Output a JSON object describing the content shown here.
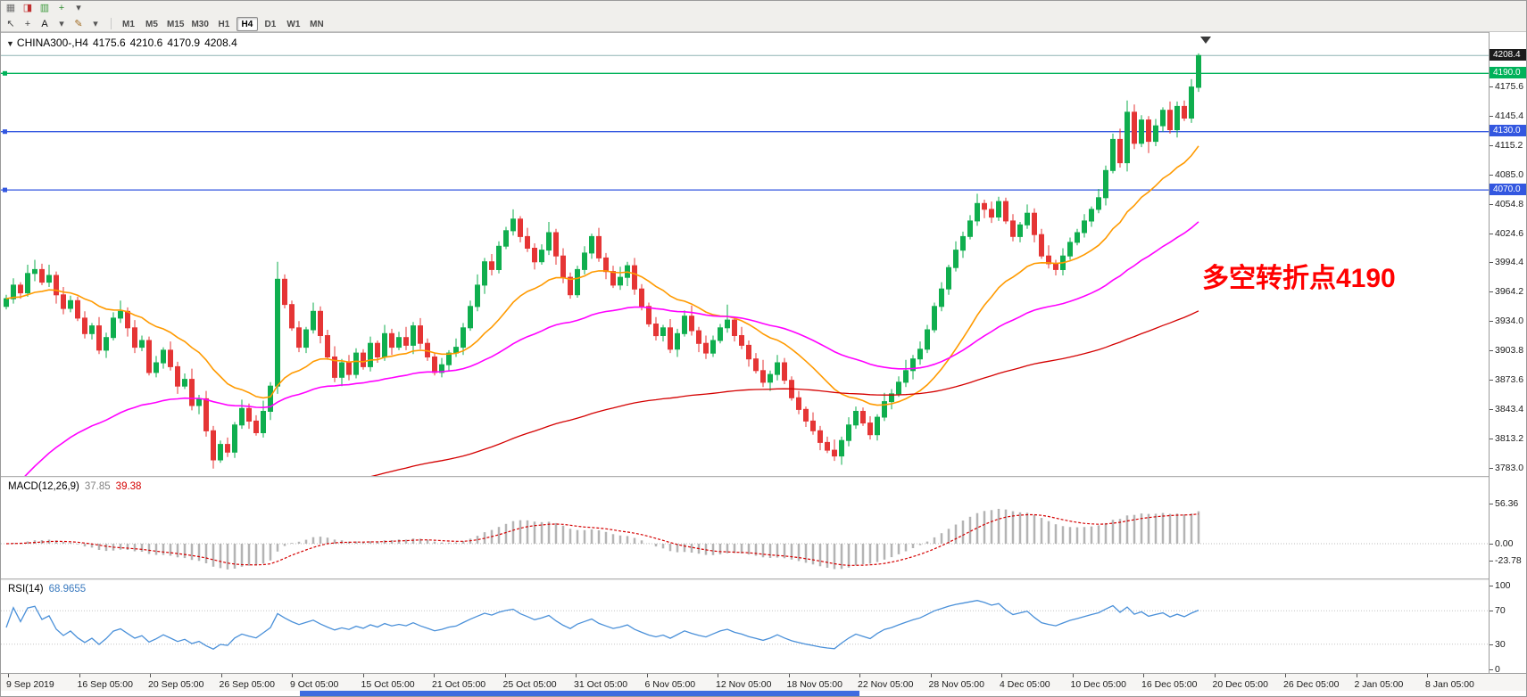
{
  "toolbar": {
    "row1_icons": [
      {
        "name": "ticker-grid-icon",
        "glyph": "▦",
        "color": "#6e6e6e"
      },
      {
        "name": "new-order-icon",
        "glyph": "◨",
        "color": "#c03030"
      },
      {
        "name": "chart-window-icon",
        "glyph": "▥",
        "color": "#3c9a3c"
      },
      {
        "name": "indicators-icon",
        "glyph": "+",
        "color": "#2e8b2e"
      },
      {
        "name": "dropdown-arrow-icon",
        "glyph": "▾",
        "color": "#555555"
      }
    ],
    "row2_icons": [
      {
        "name": "cursor-icon",
        "glyph": "↖",
        "color": "#444444"
      },
      {
        "name": "crosshair-icon",
        "glyph": "+",
        "color": "#444444"
      },
      {
        "name": "text-tool-icon",
        "glyph": "A",
        "color": "#111111"
      },
      {
        "name": "shapes-dropdown-icon",
        "glyph": "▾",
        "color": "#555555"
      },
      {
        "name": "pen-icon",
        "glyph": "✎",
        "color": "#a06a20"
      },
      {
        "name": "pen-dropdown-icon",
        "glyph": "▾",
        "color": "#555555"
      }
    ],
    "timeframes": [
      "M1",
      "M5",
      "M15",
      "M30",
      "H1",
      "H4",
      "D1",
      "W1",
      "MN"
    ],
    "active_timeframe": "H4"
  },
  "chart": {
    "title": "CHINA300-,H4",
    "ohlc": {
      "open": "4175.6",
      "high": "4210.6",
      "low": "4170.9",
      "close": "4208.4"
    },
    "current_price": "4208.4",
    "annotation": {
      "text": "多空转折点4190",
      "color": "#ff0000"
    },
    "hlines": [
      {
        "label": "4190.0",
        "price": 4190,
        "color": "#00b25a"
      },
      {
        "label": "4130.0",
        "price": 4130,
        "color": "#3357e0"
      },
      {
        "label": "4070.0",
        "price": 4070,
        "color": "#3357e0"
      }
    ],
    "colors": {
      "up": "#0fae4e",
      "down": "#e53535",
      "bid_line": "#8fb3b3",
      "current_badge_bg": "#1c1c1c"
    }
  },
  "macd_panel": {
    "label": "MACD(12,26,9)",
    "value_main": "37.85",
    "value_signal": "39.38",
    "histogram_color": "#b4b4b4",
    "signal_color": "#d40000"
  },
  "rsi_panel": {
    "label": "RSI(14)",
    "value": "68.9655",
    "line_color": "#4a90d9"
  },
  "chart_data": {
    "type": "candlestick",
    "symbol": "CHINA300-",
    "timeframe": "H4",
    "y_range": [
      3774,
      4231
    ],
    "y_axis_labels": [
      "4175.6",
      "4145.4",
      "4115.2",
      "4085.0",
      "4054.8",
      "4024.6",
      "3994.4",
      "3964.2",
      "3934.0",
      "3903.8",
      "3873.6",
      "3843.4",
      "3813.2",
      "3783.0"
    ],
    "time_labels": [
      "9 Sep 2019",
      "16 Sep 05:00",
      "20 Sep 05:00",
      "26 Sep 05:00",
      "9 Oct 05:00",
      "15 Oct 05:00",
      "21 Oct 05:00",
      "25 Oct 05:00",
      "31 Oct 05:00",
      "6 Nov 05:00",
      "12 Nov 05:00",
      "18 Nov 05:00",
      "22 Nov 05:00",
      "28 Nov 05:00",
      "4 Dec 05:00",
      "10 Dec 05:00",
      "16 Dec 05:00",
      "20 Dec 05:00",
      "26 Dec 05:00",
      "2 Jan 05:00",
      "8 Jan 05:00"
    ],
    "macd_axis_labels": [
      "56.36",
      "0.00",
      "-23.78"
    ],
    "rsi_axis_labels": [
      "100",
      "70",
      "30",
      "0"
    ],
    "open": [
      3950,
      3958,
      3972,
      3964,
      3984,
      3988,
      3975,
      3982,
      3962,
      3948,
      3956,
      3938,
      3922,
      3930,
      3905,
      3918,
      3938,
      3945,
      3928,
      3908,
      3915,
      3882,
      3892,
      3905,
      3888,
      3868,
      3875,
      3848,
      3855,
      3822,
      3792,
      3808,
      3800,
      3828,
      3845,
      3832,
      3820,
      3842,
      3868,
      3978,
      3952,
      3928,
      3908,
      3926,
      3945,
      3920,
      3898,
      3877,
      3892,
      3880,
      3902,
      3888,
      3912,
      3898,
      3922,
      3908,
      3918,
      3910,
      3930,
      3912,
      3898,
      3882,
      3890,
      3902,
      3908,
      3928,
      3950,
      3972,
      3996,
      3988,
      4012,
      4028,
      4040,
      4022,
      4010,
      3996,
      4008,
      4026,
      4002,
      3980,
      3962,
      3988,
      4005,
      4022,
      4000,
      3986,
      3972,
      3980,
      3992,
      3968,
      3950,
      3932,
      3920,
      3928,
      3906,
      3922,
      3940,
      3925,
      3912,
      3902,
      3915,
      3928,
      3936,
      3920,
      3910,
      3896,
      3884,
      3872,
      3880,
      3892,
      3874,
      3856,
      3844,
      3832,
      3822,
      3810,
      3802,
      3796,
      3812,
      3828,
      3842,
      3830,
      3818,
      3836,
      3852,
      3860,
      3872,
      3884,
      3896,
      3906,
      3926,
      3950,
      3968,
      3990,
      4008,
      4022,
      4038,
      4056,
      4050,
      4042,
      4058,
      4038,
      4022,
      4034,
      4046,
      4024,
      4002,
      3994,
      3988,
      4002,
      4016,
      4026,
      4038,
      4050,
      4062,
      4090,
      4122,
      4098,
      4150,
      4118,
      4142,
      4120,
      4136,
      4152,
      4132,
      4156,
      4144,
      4175.6
    ],
    "high": [
      3962,
      3979,
      3975,
      3993,
      3998,
      3994,
      3993,
      3986,
      3970,
      3961,
      3960,
      3945,
      3933,
      3939,
      3923,
      3944,
      3956,
      3949,
      3936,
      3920,
      3919,
      3899,
      3908,
      3914,
      3893,
      3881,
      3886,
      3859,
      3863,
      3827,
      3812,
      3815,
      3831,
      3854,
      3850,
      3838,
      3853,
      3872,
      3996,
      3983,
      3956,
      3935,
      3929,
      3954,
      3950,
      3926,
      3909,
      3896,
      3900,
      3907,
      3906,
      3919,
      3915,
      3931,
      3927,
      3924,
      3929,
      3934,
      3938,
      3917,
      3902,
      3897,
      3905,
      3917,
      3933,
      3956,
      3983,
      4000,
      4004,
      4017,
      4032,
      4050,
      4043,
      4031,
      4015,
      4014,
      4037,
      4030,
      4010,
      3985,
      3992,
      4012,
      4025,
      4031,
      4005,
      3992,
      3991,
      3996,
      4000,
      3973,
      3954,
      3939,
      3931,
      3937,
      3927,
      3946,
      3951,
      3929,
      3920,
      3920,
      3932,
      3952,
      3939,
      3929,
      3915,
      3902,
      3895,
      3884,
      3900,
      3897,
      3878,
      3863,
      3847,
      3841,
      3827,
      3816,
      3813,
      3816,
      3836,
      3847,
      3846,
      3837,
      3839,
      3861,
      3865,
      3878,
      3895,
      3900,
      3914,
      3931,
      3954,
      3975,
      3993,
      4017,
      4027,
      4044,
      4066,
      4060,
      4058,
      4063,
      4062,
      4045,
      4037,
      4055,
      4051,
      4030,
      4013,
      3998,
      4010,
      4021,
      4030,
      4045,
      4053,
      4071,
      4095,
      4128,
      4133,
      4162,
      4158,
      4147,
      4146,
      4143,
      4155,
      4161,
      4161,
      4162,
      4184,
      4210.6
    ],
    "low": [
      3947,
      3953,
      3958,
      3960,
      3976,
      3972,
      3970,
      3953,
      3942,
      3944,
      3935,
      3917,
      3916,
      3901,
      3897,
      3915,
      3933,
      3919,
      3902,
      3904,
      3879,
      3877,
      3886,
      3884,
      3860,
      3865,
      3843,
      3839,
      3816,
      3783,
      3789,
      3795,
      3794,
      3824,
      3824,
      3817,
      3815,
      3833,
      3860,
      3948,
      3925,
      3903,
      3902,
      3922,
      3912,
      3895,
      3872,
      3868,
      3874,
      3876,
      3885,
      3883,
      3892,
      3894,
      3900,
      3905,
      3905,
      3901,
      3906,
      3894,
      3879,
      3877,
      3884,
      3898,
      3900,
      3925,
      3945,
      3963,
      3982,
      3984,
      4009,
      4023,
      4016,
      4006,
      3988,
      3993,
      4003,
      3993,
      3974,
      3958,
      3959,
      3983,
      3999,
      3996,
      3978,
      3969,
      3967,
      3971,
      3962,
      3946,
      3929,
      3915,
      3914,
      3902,
      3898,
      3919,
      3920,
      3903,
      3896,
      3898,
      3912,
      3923,
      3914,
      3906,
      3888,
      3881,
      3867,
      3863,
      3874,
      3870,
      3853,
      3839,
      3826,
      3818,
      3802,
      3799,
      3791,
      3787,
      3806,
      3824,
      3827,
      3813,
      3812,
      3832,
      3844,
      3857,
      3867,
      3875,
      3890,
      3902,
      3923,
      3945,
      3962,
      3986,
      4000,
      4019,
      4033,
      4041,
      4036,
      4038,
      4035,
      4017,
      4016,
      4030,
      4016,
      3999,
      3989,
      3982,
      3982,
      3998,
      4013,
      4021,
      4032,
      4046,
      4054,
      4087,
      4093,
      4089,
      4112,
      4114,
      4108,
      4115,
      4130,
      4128,
      4124,
      4141,
      4139,
      4170.9
    ],
    "close": [
      3958,
      3972,
      3964,
      3984,
      3988,
      3975,
      3982,
      3962,
      3948,
      3956,
      3938,
      3922,
      3930,
      3905,
      3918,
      3938,
      3945,
      3928,
      3908,
      3915,
      3882,
      3892,
      3905,
      3888,
      3868,
      3875,
      3848,
      3855,
      3822,
      3792,
      3808,
      3800,
      3828,
      3845,
      3832,
      3820,
      3842,
      3868,
      3978,
      3952,
      3928,
      3908,
      3926,
      3945,
      3920,
      3898,
      3877,
      3892,
      3880,
      3902,
      3888,
      3912,
      3898,
      3922,
      3908,
      3918,
      3910,
      3930,
      3912,
      3898,
      3882,
      3890,
      3902,
      3908,
      3928,
      3950,
      3972,
      3996,
      3988,
      4012,
      4028,
      4040,
      4022,
      4010,
      3996,
      4008,
      4026,
      4002,
      3980,
      3962,
      3988,
      4005,
      4022,
      4000,
      3986,
      3972,
      3980,
      3992,
      3968,
      3950,
      3932,
      3920,
      3928,
      3906,
      3922,
      3940,
      3925,
      3912,
      3902,
      3915,
      3928,
      3936,
      3920,
      3910,
      3896,
      3884,
      3872,
      3880,
      3892,
      3874,
      3856,
      3844,
      3832,
      3822,
      3810,
      3802,
      3796,
      3812,
      3828,
      3842,
      3830,
      3818,
      3836,
      3852,
      3860,
      3872,
      3884,
      3896,
      3906,
      3926,
      3950,
      3968,
      3990,
      4008,
      4022,
      4038,
      4056,
      4050,
      4042,
      4058,
      4038,
      4022,
      4034,
      4046,
      4024,
      4002,
      3994,
      3988,
      4002,
      4016,
      4026,
      4038,
      4050,
      4062,
      4090,
      4122,
      4098,
      4150,
      4118,
      4142,
      4120,
      4136,
      4152,
      4132,
      4156,
      4144,
      4176,
      4208.4
    ],
    "overlays": [
      {
        "name": "ema-fast",
        "period": 20,
        "color": "#ff9a00"
      },
      {
        "name": "ema-medium",
        "period": 55,
        "seed": 3748,
        "color": "#ff00ff"
      },
      {
        "name": "ema-slow",
        "period": 150,
        "seed": 3650,
        "color": "#d40000"
      }
    ],
    "indicators": {
      "macd": {
        "fast": 12,
        "slow": 26,
        "signal": 9,
        "current_main": 37.85,
        "current_signal": 39.38,
        "axis": [
          56.36,
          0,
          -23.78
        ]
      },
      "rsi": {
        "period": 14,
        "current": 68.9655,
        "levels": [
          70,
          30
        ]
      }
    }
  }
}
